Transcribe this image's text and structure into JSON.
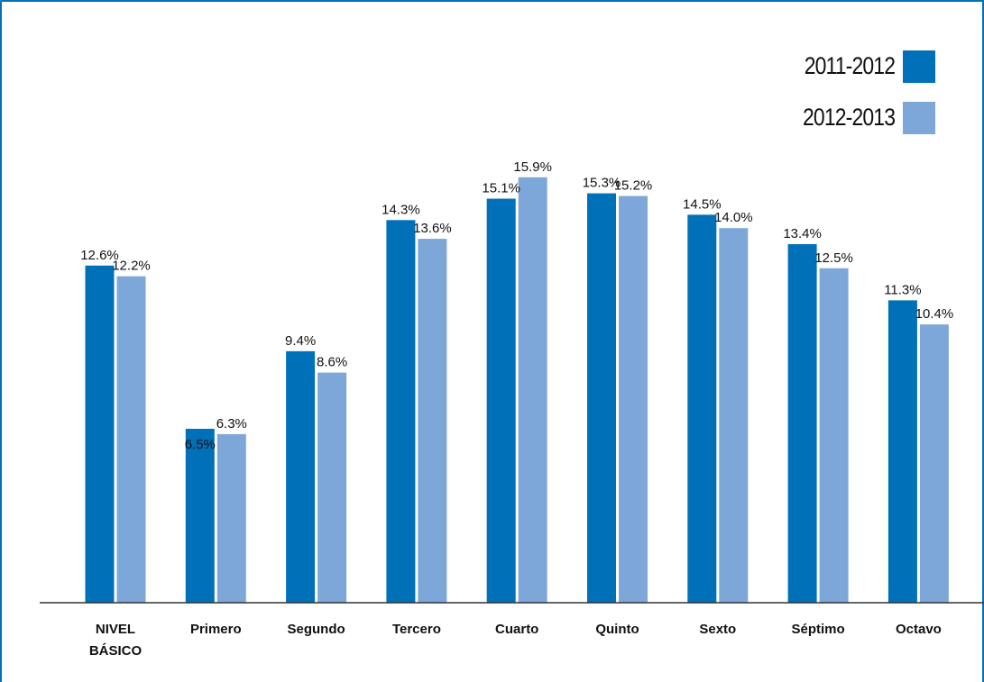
{
  "chart_data": {
    "type": "bar",
    "categories": [
      [
        "NIVEL",
        "BÁSICO"
      ],
      [
        "Primero"
      ],
      [
        "Segundo"
      ],
      [
        "Tercero"
      ],
      [
        "Cuarto"
      ],
      [
        "Quinto"
      ],
      [
        "Sexto"
      ],
      [
        "Séptimo"
      ],
      [
        "Octavo"
      ]
    ],
    "series": [
      {
        "name": "2011-2012",
        "color": "#0070b8",
        "values": [
          12.6,
          6.5,
          9.4,
          14.3,
          15.1,
          15.3,
          14.5,
          13.4,
          11.3
        ],
        "labels": [
          "12.6%",
          "6.5%",
          "9.4%",
          "14.3%",
          "15.1%",
          "15.3%",
          "14.5%",
          "13.4%",
          "11.3%"
        ]
      },
      {
        "name": "2012-2013",
        "color": "#7da7d9",
        "values": [
          12.2,
          6.3,
          8.6,
          13.6,
          15.9,
          15.2,
          14.0,
          12.5,
          10.4
        ],
        "labels": [
          "12.2%",
          "6.3%",
          "8.6%",
          "13.6%",
          "15.9%",
          "15.2%",
          "14.0%",
          "12.5%",
          "10.4%"
        ]
      }
    ],
    "ylim": [
      0,
      16
    ],
    "grid": false,
    "legend": "top-right"
  }
}
